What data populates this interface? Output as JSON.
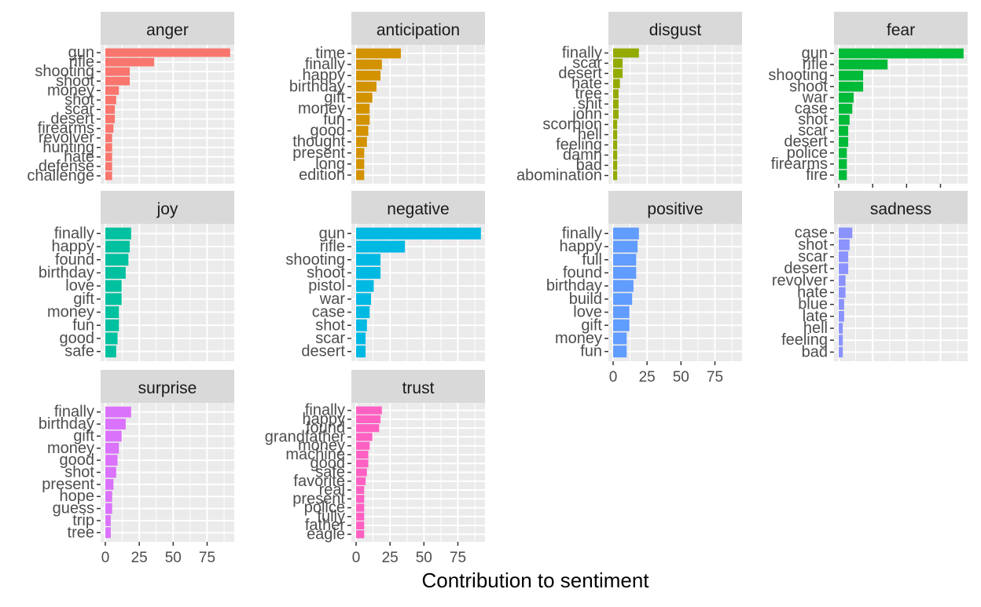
{
  "xlabel": "Contribution to sentiment",
  "chart_data": {
    "type": "bar",
    "orientation": "horizontal",
    "facet_layout": "3 rows x 4 columns",
    "xlabel": "Contribution to sentiment",
    "ylabel": "",
    "xlim": [
      0,
      95
    ],
    "x_ticks": [
      0,
      25,
      50,
      75
    ],
    "grid": true,
    "legend": "none",
    "panels": [
      {
        "name": "anger",
        "color": "#F8766D",
        "categories": [
          "gun",
          "rifle",
          "shooting",
          "shoot",
          "money",
          "shot",
          "scar",
          "desert",
          "firearms",
          "revolver",
          "hunting",
          "hate",
          "defense",
          "challenge"
        ],
        "values": [
          92,
          36,
          18,
          18,
          10,
          8,
          7,
          7,
          6,
          5,
          5,
          5,
          5,
          5
        ]
      },
      {
        "name": "anticipation",
        "color": "#D39200",
        "categories": [
          "time",
          "finally",
          "happy",
          "birthday",
          "gift",
          "money",
          "fun",
          "good",
          "thought",
          "present",
          "long",
          "edition"
        ],
        "values": [
          33,
          19,
          18,
          15,
          12,
          10,
          10,
          9,
          8,
          6,
          6,
          6
        ]
      },
      {
        "name": "disgust",
        "color": "#93AA00",
        "categories": [
          "finally",
          "scar",
          "desert",
          "hate",
          "tree",
          "shit",
          "john",
          "scorpion",
          "hell",
          "feeling",
          "damn",
          "bad",
          "abomination"
        ],
        "values": [
          19,
          7,
          7,
          5,
          4,
          4,
          4,
          3,
          3,
          3,
          3,
          3,
          3
        ]
      },
      {
        "name": "fear",
        "color": "#00BA38",
        "categories": [
          "gun",
          "rifle",
          "shooting",
          "shoot",
          "war",
          "case",
          "shot",
          "scar",
          "desert",
          "police",
          "firearms",
          "fire"
        ],
        "values": [
          92,
          36,
          18,
          18,
          11,
          10,
          8,
          7,
          7,
          6,
          6,
          6
        ]
      },
      {
        "name": "joy",
        "color": "#00C19F",
        "categories": [
          "finally",
          "happy",
          "found",
          "birthday",
          "love",
          "gift",
          "money",
          "fun",
          "good",
          "safe"
        ],
        "values": [
          19,
          18,
          17,
          15,
          12,
          12,
          10,
          10,
          9,
          8
        ]
      },
      {
        "name": "negative",
        "color": "#00B9E3",
        "categories": [
          "gun",
          "rifle",
          "shooting",
          "shoot",
          "pistol",
          "war",
          "case",
          "shot",
          "scar",
          "desert"
        ],
        "values": [
          92,
          36,
          18,
          18,
          13,
          11,
          10,
          8,
          7,
          7
        ]
      },
      {
        "name": "positive",
        "color": "#619CFF",
        "categories": [
          "finally",
          "happy",
          "full",
          "found",
          "birthday",
          "build",
          "love",
          "gift",
          "money",
          "fun"
        ],
        "values": [
          19,
          18,
          17,
          17,
          15,
          14,
          12,
          12,
          10,
          10
        ]
      },
      {
        "name": "sadness",
        "color": "#8B93FF",
        "categories": [
          "case",
          "shot",
          "scar",
          "desert",
          "revolver",
          "hate",
          "blue",
          "late",
          "hell",
          "feeling",
          "bad"
        ],
        "values": [
          10,
          8,
          7,
          7,
          5,
          5,
          4,
          4,
          3,
          3,
          3
        ]
      },
      {
        "name": "surprise",
        "color": "#DB72FB",
        "categories": [
          "finally",
          "birthday",
          "gift",
          "money",
          "good",
          "shot",
          "present",
          "hope",
          "guess",
          "trip",
          "tree"
        ],
        "values": [
          19,
          15,
          12,
          10,
          9,
          8,
          6,
          5,
          5,
          4,
          4
        ]
      },
      {
        "name": "trust",
        "color": "#FF61C3",
        "categories": [
          "finally",
          "happy",
          "found",
          "grandfather",
          "money",
          "machine",
          "good",
          "safe",
          "favorite",
          "real",
          "present",
          "police",
          "fully",
          "father",
          "eagle"
        ],
        "values": [
          19,
          18,
          17,
          12,
          10,
          9,
          9,
          8,
          7,
          6,
          6,
          6,
          6,
          6,
          6
        ]
      }
    ]
  }
}
